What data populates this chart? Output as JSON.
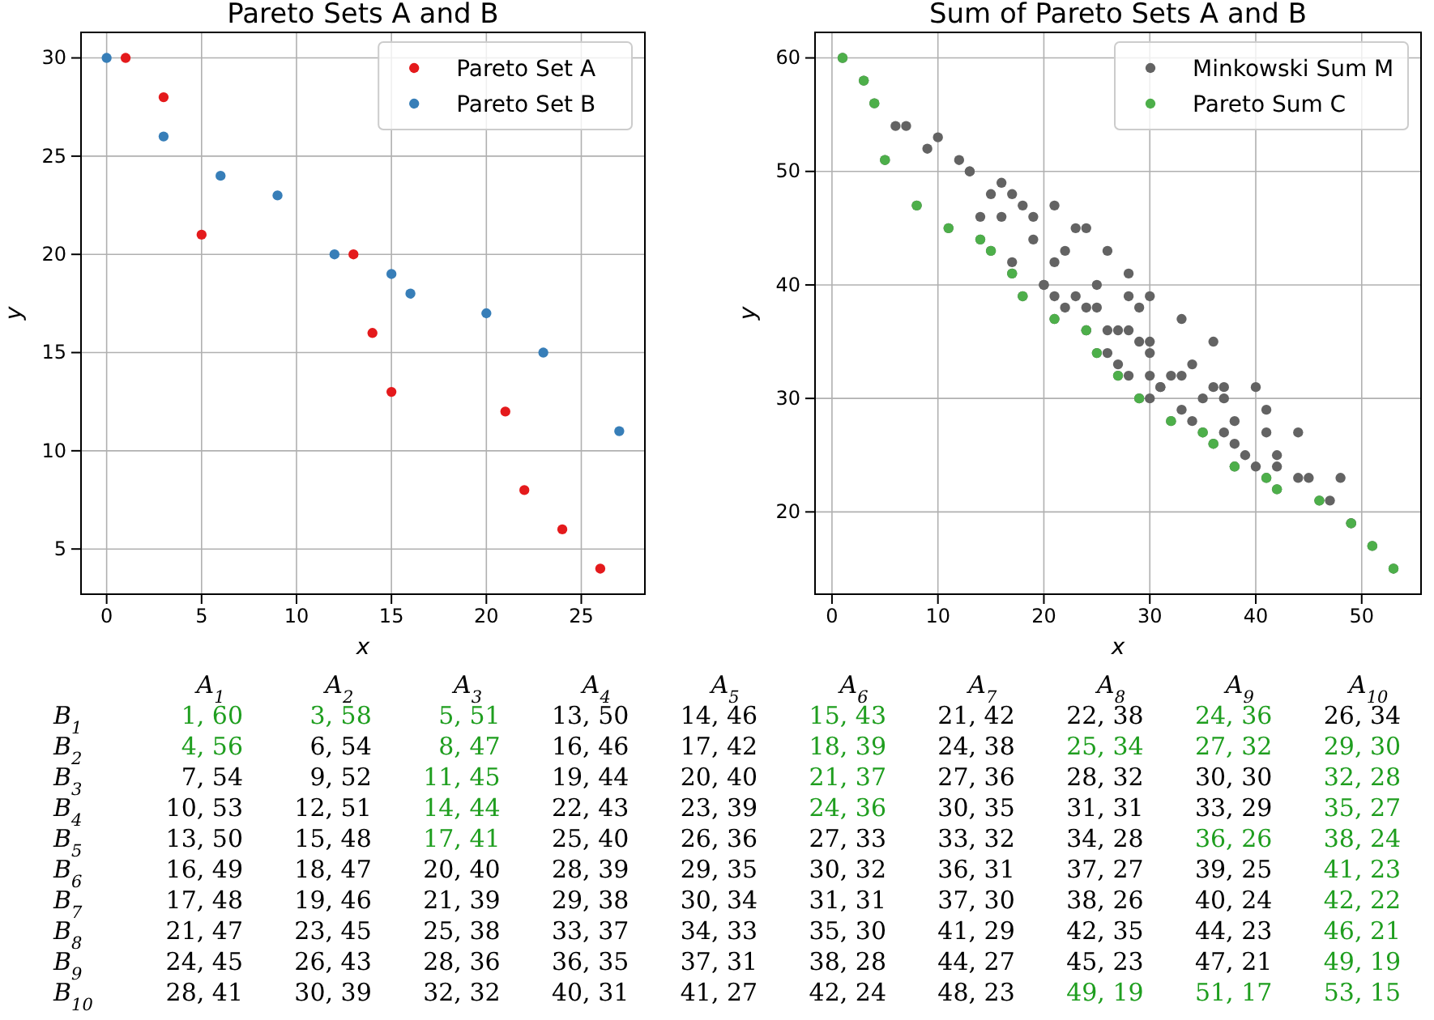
{
  "chart_data": [
    {
      "type": "scatter",
      "title": "Pareto Sets A and B",
      "xlabel": "x",
      "ylabel": "y",
      "xlim": [
        -1.35,
        28.35
      ],
      "ylim": [
        2.7,
        31.3
      ],
      "xticks": [
        0,
        5,
        10,
        15,
        20,
        25
      ],
      "yticks": [
        5,
        10,
        15,
        20,
        25,
        30
      ],
      "grid": true,
      "legend": "top right",
      "marker": "circle",
      "series": [
        {
          "name": "Pareto Set A",
          "color": "#e41a1c",
          "x": [
            1,
            3,
            5,
            13,
            14,
            15,
            21,
            22,
            24,
            26
          ],
          "values": [
            30,
            28,
            21,
            20,
            16,
            13,
            12,
            8,
            6,
            4
          ]
        },
        {
          "name": "Pareto Set B",
          "color": "#377eb8",
          "x": [
            0,
            3,
            6,
            9,
            12,
            15,
            16,
            20,
            23,
            27
          ],
          "values": [
            30,
            26,
            24,
            23,
            20,
            19,
            18,
            17,
            15,
            11
          ]
        }
      ]
    },
    {
      "type": "scatter",
      "title": "Sum of Pareto Sets A and B",
      "xlabel": "x",
      "ylabel": "y",
      "xlim": [
        -1.6,
        55.6
      ],
      "ylim": [
        12.75,
        62.25
      ],
      "xticks": [
        0,
        10,
        20,
        30,
        40,
        50
      ],
      "yticks": [
        20,
        30,
        40,
        50,
        60
      ],
      "grid": true,
      "legend": "top right",
      "marker": "circle",
      "series": [
        {
          "name": "Minkowski Sum M",
          "color": "#636363",
          "x": [
            1,
            3,
            5,
            13,
            14,
            15,
            21,
            22,
            24,
            26,
            4,
            6,
            8,
            16,
            17,
            18,
            24,
            25,
            27,
            29,
            7,
            9,
            11,
            19,
            20,
            21,
            27,
            28,
            30,
            32,
            10,
            12,
            14,
            22,
            23,
            24,
            30,
            31,
            33,
            35,
            13,
            15,
            17,
            25,
            26,
            27,
            33,
            34,
            36,
            38,
            16,
            18,
            20,
            28,
            29,
            30,
            36,
            37,
            39,
            41,
            17,
            19,
            21,
            29,
            30,
            31,
            37,
            38,
            40,
            42,
            21,
            23,
            25,
            33,
            34,
            35,
            41,
            42,
            44,
            46,
            24,
            26,
            28,
            36,
            37,
            38,
            44,
            45,
            47,
            49,
            28,
            30,
            32,
            40,
            41,
            42,
            48,
            49,
            51,
            53
          ],
          "values": [
            60,
            58,
            51,
            50,
            46,
            43,
            42,
            38,
            36,
            34,
            56,
            54,
            47,
            46,
            42,
            39,
            38,
            34,
            32,
            30,
            54,
            52,
            45,
            44,
            40,
            37,
            36,
            32,
            30,
            28,
            53,
            51,
            44,
            43,
            39,
            36,
            35,
            31,
            29,
            27,
            50,
            48,
            41,
            40,
            36,
            33,
            32,
            28,
            26,
            24,
            49,
            47,
            40,
            39,
            35,
            32,
            31,
            27,
            25,
            23,
            48,
            46,
            39,
            38,
            34,
            31,
            30,
            26,
            24,
            22,
            47,
            45,
            38,
            37,
            33,
            30,
            29,
            25,
            23,
            21,
            45,
            43,
            36,
            35,
            31,
            28,
            27,
            23,
            21,
            19,
            41,
            39,
            32,
            31,
            27,
            24,
            23,
            19,
            17,
            15
          ]
        },
        {
          "name": "Pareto Sum C",
          "color": "#4daf4a",
          "x": [
            1,
            3,
            4,
            5,
            8,
            11,
            14,
            15,
            17,
            18,
            21,
            24,
            25,
            27,
            29,
            32,
            35,
            36,
            38,
            41,
            42,
            46,
            49,
            51,
            53
          ],
          "values": [
            60,
            58,
            56,
            51,
            47,
            45,
            44,
            43,
            41,
            39,
            37,
            36,
            34,
            32,
            30,
            28,
            27,
            26,
            24,
            23,
            22,
            21,
            19,
            17,
            15
          ]
        }
      ]
    },
    {
      "type": "heatmap",
      "categories": [
        "A$_{1}$",
        "A$_{2}$",
        "A$_{3}$",
        "A$_{4}$",
        "A$_{5}$",
        "A$_{6}$",
        "A$_{7}$",
        "A$_{8}$",
        "A$_{9}$",
        "A$_{10}$"
      ],
      "y_categories": [
        "B$_{1}$",
        "B$_{2}$",
        "B$_{3}$",
        "B$_{4}$",
        "B$_{5}$",
        "B$_{6}$",
        "B$_{7}$",
        "B$_{8}$",
        "B$_{9}$",
        "B$_{10}$"
      ],
      "colors": [
        [
          "#1f9e1f",
          "#1f9e1f",
          "#1f9e1f",
          "#000000",
          "#000000",
          "#1f9e1f",
          "#000000",
          "#000000",
          "#1f9e1f",
          "#000000"
        ],
        [
          "#1f9e1f",
          "#000000",
          "#1f9e1f",
          "#000000",
          "#000000",
          "#1f9e1f",
          "#000000",
          "#1f9e1f",
          "#1f9e1f",
          "#1f9e1f"
        ],
        [
          "#000000",
          "#000000",
          "#1f9e1f",
          "#000000",
          "#000000",
          "#1f9e1f",
          "#000000",
          "#000000",
          "#000000",
          "#1f9e1f"
        ],
        [
          "#000000",
          "#000000",
          "#1f9e1f",
          "#000000",
          "#000000",
          "#1f9e1f",
          "#000000",
          "#000000",
          "#000000",
          "#1f9e1f"
        ],
        [
          "#000000",
          "#000000",
          "#1f9e1f",
          "#000000",
          "#000000",
          "#000000",
          "#000000",
          "#000000",
          "#1f9e1f",
          "#1f9e1f"
        ],
        [
          "#000000",
          "#000000",
          "#000000",
          "#000000",
          "#000000",
          "#000000",
          "#000000",
          "#000000",
          "#000000",
          "#1f9e1f"
        ],
        [
          "#000000",
          "#000000",
          "#000000",
          "#000000",
          "#000000",
          "#000000",
          "#000000",
          "#000000",
          "#000000",
          "#1f9e1f"
        ],
        [
          "#000000",
          "#000000",
          "#000000",
          "#000000",
          "#000000",
          "#000000",
          "#000000",
          "#000000",
          "#000000",
          "#1f9e1f"
        ],
        [
          "#000000",
          "#000000",
          "#000000",
          "#000000",
          "#000000",
          "#000000",
          "#000000",
          "#000000",
          "#000000",
          "#1f9e1f"
        ],
        [
          "#000000",
          "#000000",
          "#000000",
          "#000000",
          "#000000",
          "#000000",
          "#000000",
          "#1f9e1f",
          "#1f9e1f",
          "#1f9e1f"
        ]
      ],
      "cells": [
        [
          null,
          null,
          null,
          null,
          null,
          null,
          null,
          null,
          null,
          null
        ],
        [
          null,
          null,
          null,
          null,
          null,
          null,
          null,
          null,
          null,
          null
        ],
        [
          null,
          null,
          null,
          null,
          null,
          null,
          null,
          null,
          null,
          null
        ],
        [
          null,
          null,
          null,
          null,
          null,
          null,
          null,
          null,
          null,
          null
        ],
        [
          null,
          null,
          null,
          null,
          null,
          null,
          null,
          null,
          null,
          null
        ],
        [
          null,
          null,
          null,
          null,
          null,
          null,
          null,
          null,
          null,
          null
        ],
        [
          null,
          null,
          null,
          null,
          null,
          null,
          null,
          null,
          null,
          null
        ],
        [
          null,
          null,
          null,
          null,
          null,
          null,
          null,
          null,
          null,
          null
        ],
        [
          null,
          null,
          null,
          null,
          null,
          null,
          null,
          null,
          null,
          null
        ],
        [
          null,
          null,
          null,
          null,
          null,
          null,
          null,
          null,
          null,
          null
        ]
      ],
      "cell_labels": [
        [
          "1, 60",
          "3, 58",
          "5, 51",
          "13, 50",
          "14, 46",
          "15, 43",
          "21, 42",
          "22, 38",
          "24, 36",
          "26, 34"
        ],
        [
          "4, 56",
          "6, 54",
          "8, 47",
          "16, 46",
          "17, 42",
          "18, 39",
          "24, 38",
          "25, 34",
          "27, 32",
          "29, 30"
        ],
        [
          "7, 54",
          "9, 52",
          "11, 45",
          "19, 44",
          "20, 40",
          "21, 37",
          "27, 36",
          "28, 32",
          "30, 30",
          "32, 28"
        ],
        [
          "10, 53",
          "12, 51",
          "14, 44",
          "22, 43",
          "23, 39",
          "24, 36",
          "30, 35",
          "31, 31",
          "33, 29",
          "35, 27"
        ],
        [
          "13, 50",
          "15, 48",
          "17, 41",
          "25, 40",
          "26, 36",
          "27, 33",
          "33, 32",
          "34, 28",
          "36, 26",
          "38, 24"
        ],
        [
          "16, 49",
          "18, 47",
          "20, 40",
          "28, 39",
          "29, 35",
          "30, 32",
          "36, 31",
          "37, 27",
          "39, 25",
          "41, 23"
        ],
        [
          "17, 48",
          "19, 46",
          "21, 39",
          "29, 38",
          "30, 34",
          "31, 31",
          "37, 30",
          "38, 26",
          "40, 24",
          "42, 22"
        ],
        [
          "21, 47",
          "23, 45",
          "25, 38",
          "33, 37",
          "34, 33",
          "35, 30",
          "41, 29",
          "42, 35",
          "44, 23",
          "46, 21"
        ],
        [
          "24, 45",
          "26, 43",
          "28, 36",
          "36, 35",
          "37, 31",
          "38, 28",
          "44, 27",
          "45, 23",
          "47, 21",
          "49, 19"
        ],
        [
          "28, 41",
          "30, 39",
          "32, 32",
          "40, 31",
          "41, 27",
          "42, 24",
          "48, 23",
          "49, 19",
          "51, 17",
          "53, 15"
        ]
      ]
    }
  ]
}
